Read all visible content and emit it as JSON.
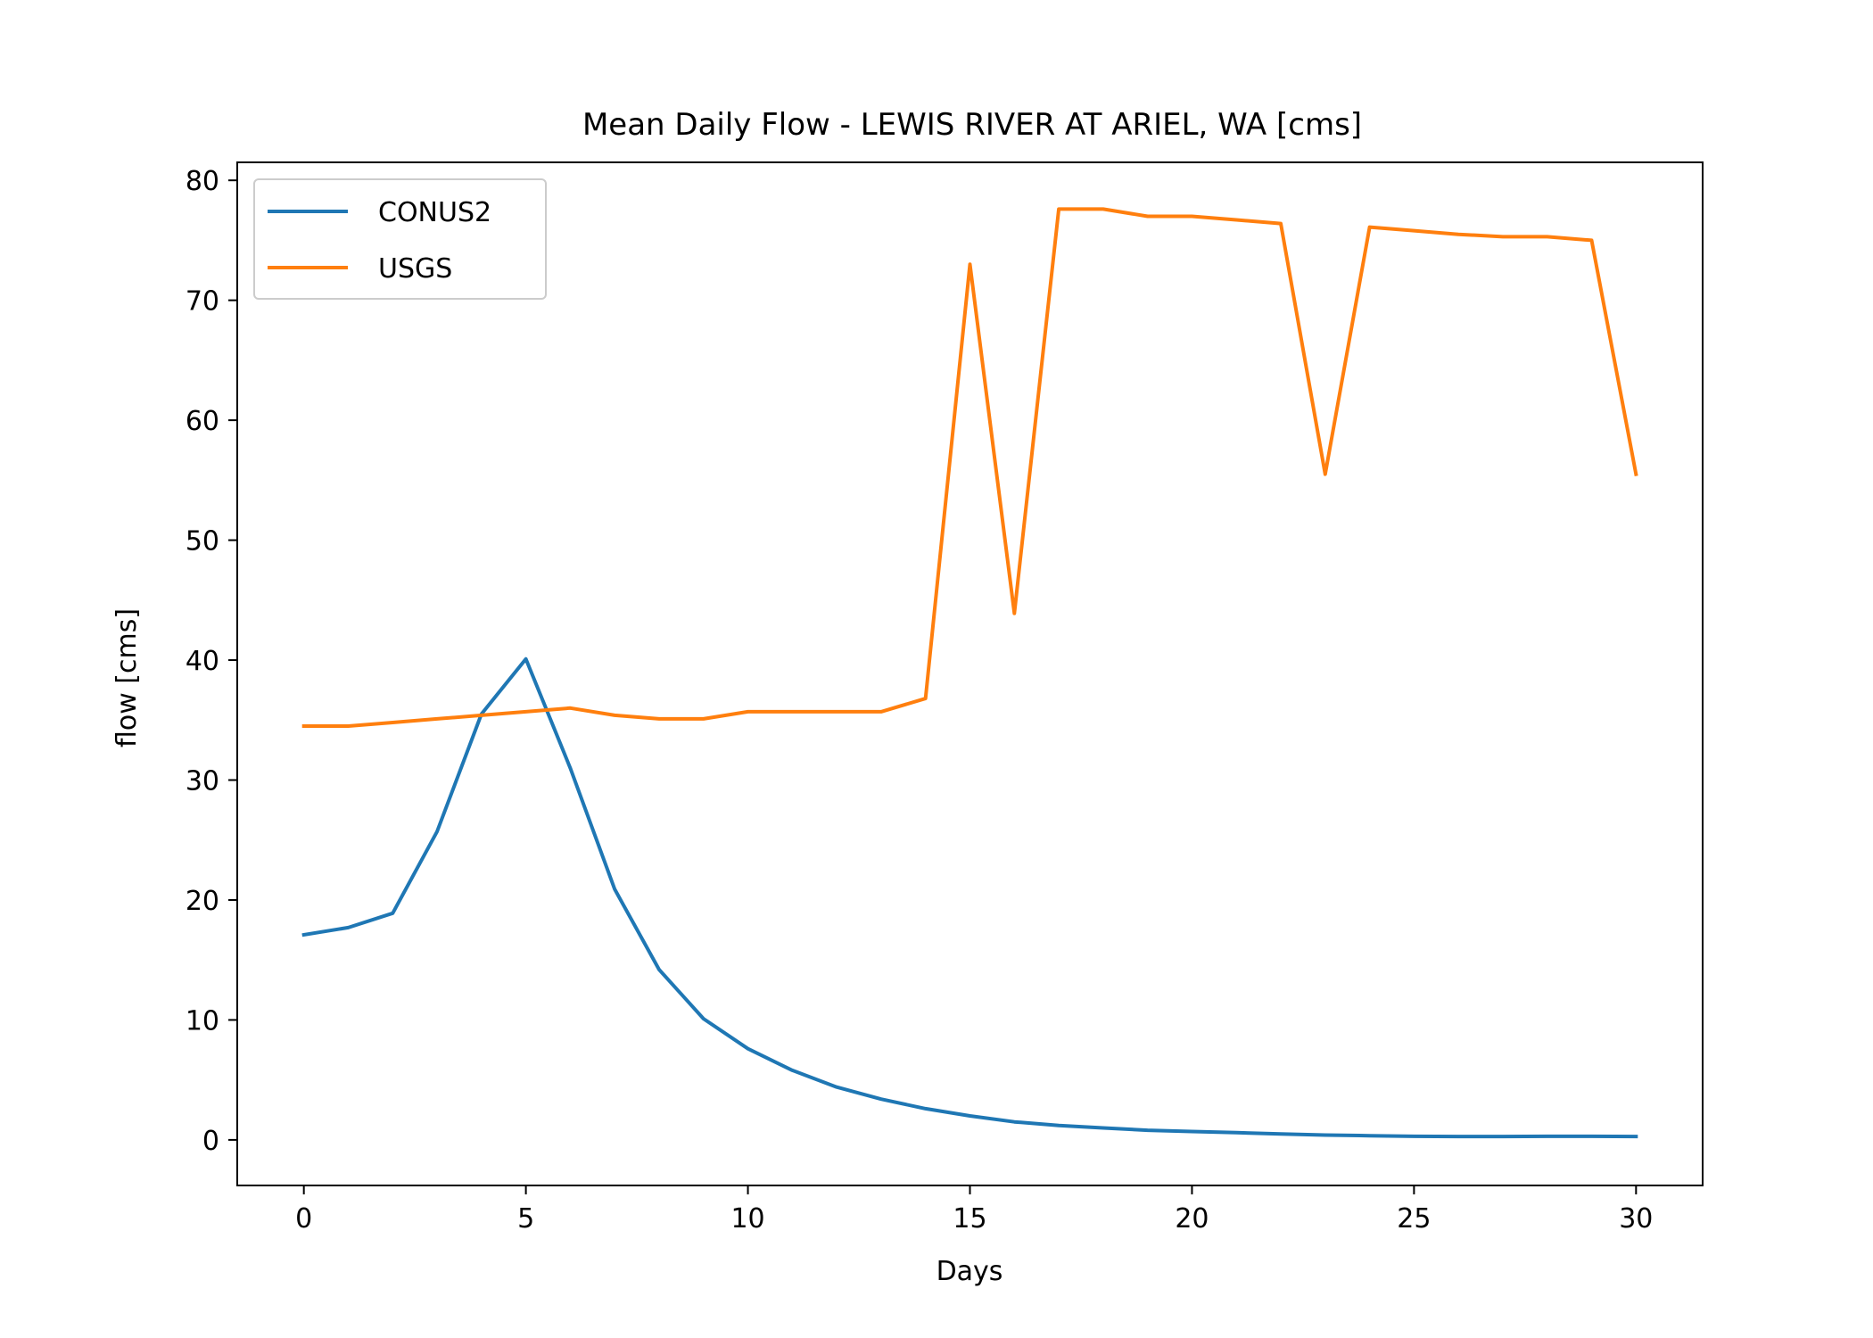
{
  "chart_data": {
    "type": "line",
    "title": "Mean Daily Flow - LEWIS RIVER AT ARIEL, WA [cms]",
    "xlabel": "Days",
    "ylabel": "flow [cms]",
    "xlim": [
      -1.5,
      31.5
    ],
    "ylim": [
      -3.8,
      81.5
    ],
    "xticks": [
      0,
      5,
      10,
      15,
      20,
      25,
      30
    ],
    "yticks": [
      0,
      10,
      20,
      30,
      40,
      50,
      60,
      70,
      80
    ],
    "grid": false,
    "legend_position": "top-left",
    "x": [
      0,
      1,
      2,
      3,
      4,
      5,
      6,
      7,
      8,
      9,
      10,
      11,
      12,
      13,
      14,
      15,
      16,
      17,
      18,
      19,
      20,
      21,
      22,
      23,
      24,
      25,
      26,
      27,
      28,
      29,
      30
    ],
    "series": [
      {
        "name": "CONUS2",
        "color": "#1f77b4",
        "values": [
          17.1,
          17.7,
          18.9,
          25.7,
          35.5,
          40.1,
          31.0,
          20.9,
          14.2,
          10.1,
          7.6,
          5.8,
          4.4,
          3.4,
          2.6,
          2.0,
          1.5,
          1.2,
          1.0,
          0.8,
          0.7,
          0.6,
          0.5,
          0.4,
          0.35,
          0.3,
          0.28,
          0.28,
          0.3,
          0.3,
          0.28
        ]
      },
      {
        "name": "USGS",
        "color": "#ff7f0e",
        "values": [
          34.5,
          34.5,
          34.8,
          35.1,
          35.4,
          35.7,
          36.0,
          35.4,
          35.1,
          35.1,
          35.7,
          35.7,
          35.7,
          35.7,
          36.8,
          73.0,
          43.9,
          77.6,
          77.6,
          77.0,
          77.0,
          76.7,
          76.4,
          55.5,
          76.1,
          75.8,
          75.5,
          75.3,
          75.3,
          75.0,
          55.5
        ]
      }
    ]
  }
}
